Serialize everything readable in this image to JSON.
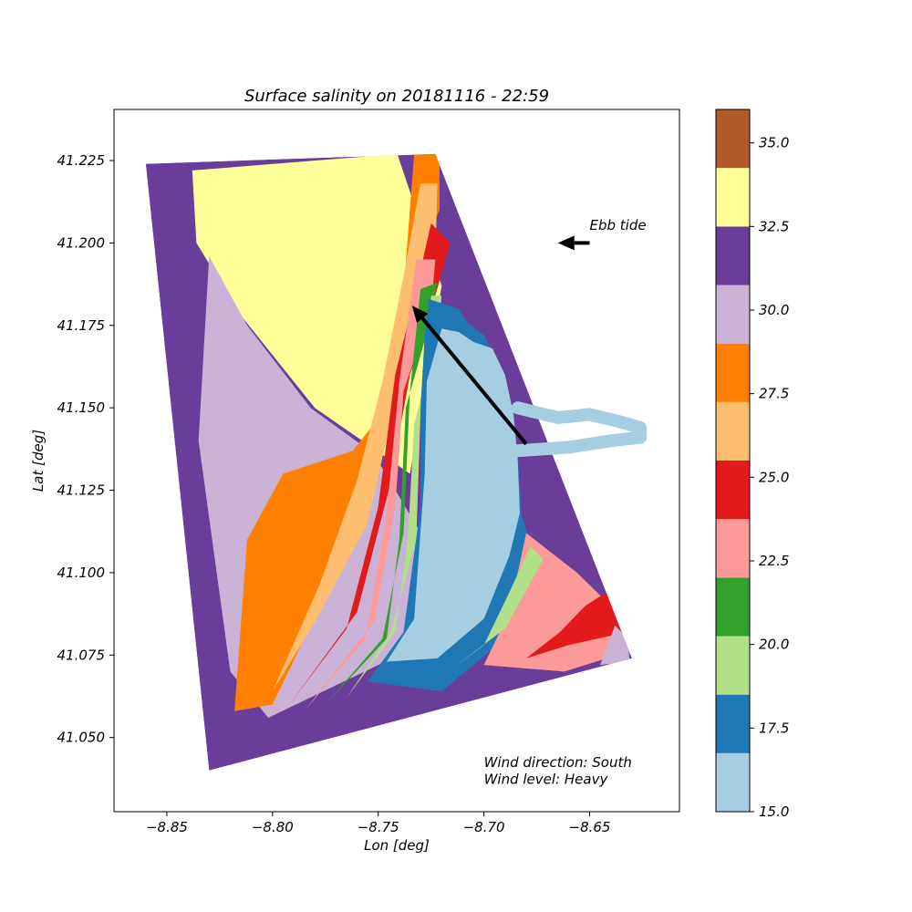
{
  "chart_data": {
    "type": "heatmap",
    "title": "Surface salinity on 20181116 - 22:59",
    "xlabel": "Lon [deg]",
    "ylabel": "Lat [deg]",
    "xlim": [
      -8.875,
      -8.6075
    ],
    "ylim": [
      41.0275,
      41.2405
    ],
    "xticks": [
      -8.85,
      -8.8,
      -8.75,
      -8.7,
      -8.65
    ],
    "xtick_labels": [
      "−8.85",
      "−8.80",
      "−8.75",
      "−8.70",
      "−8.65"
    ],
    "yticks": [
      41.05,
      41.075,
      41.1,
      41.125,
      41.15,
      41.175,
      41.2,
      41.225
    ],
    "ytick_labels": [
      "41.050",
      "41.075",
      "41.100",
      "41.125",
      "41.150",
      "41.175",
      "41.200",
      "41.225"
    ],
    "grid": false,
    "colorbar": {
      "min": 15.0,
      "max": 36.0,
      "ticks": [
        15.0,
        17.5,
        20.0,
        22.5,
        25.0,
        27.5,
        30.0,
        32.5,
        35.0
      ],
      "tick_labels": [
        "15.0",
        "17.5",
        "20.0",
        "22.5",
        "25.0",
        "27.5",
        "30.0",
        "32.5",
        "35.0"
      ],
      "levels": [
        {
          "from": 15.0,
          "to": 16.75,
          "color": "#a6cee3"
        },
        {
          "from": 16.75,
          "to": 18.5,
          "color": "#1f78b4"
        },
        {
          "from": 18.5,
          "to": 20.25,
          "color": "#b2df8a"
        },
        {
          "from": 20.25,
          "to": 22.0,
          "color": "#33a02c"
        },
        {
          "from": 22.0,
          "to": 23.75,
          "color": "#fb9a99"
        },
        {
          "from": 23.75,
          "to": 25.5,
          "color": "#e31a1c"
        },
        {
          "from": 25.5,
          "to": 27.25,
          "color": "#fdbf6f"
        },
        {
          "from": 27.25,
          "to": 29.0,
          "color": "#ff7f00"
        },
        {
          "from": 29.0,
          "to": 30.75,
          "color": "#cab2d6"
        },
        {
          "from": 30.75,
          "to": 32.5,
          "color": "#6a3d9a"
        },
        {
          "from": 32.5,
          "to": 34.25,
          "color": "#ffff99"
        },
        {
          "from": 34.25,
          "to": 36.0,
          "color": "#b15928"
        }
      ]
    },
    "field": {
      "domain_corners": [
        [
          -8.86,
          41.224
        ],
        [
          -8.723,
          41.227
        ],
        [
          -8.63,
          41.074
        ],
        [
          -8.83,
          41.04
        ]
      ],
      "river_path": [
        [
          -8.684,
          41.15
        ],
        [
          -8.665,
          41.147
        ],
        [
          -8.65,
          41.148
        ],
        [
          -8.637,
          41.146
        ],
        [
          -8.626,
          41.144
        ],
        [
          -8.626,
          41.141
        ],
        [
          -8.64,
          41.14
        ],
        [
          -8.66,
          41.138
        ],
        [
          -8.684,
          41.137
        ]
      ],
      "zones": [
        {
          "value": 33.0,
          "polygon": [
            [
              -8.838,
              41.222
            ],
            [
              -8.741,
              41.227
            ],
            [
              -8.72,
              41.187
            ],
            [
              -8.735,
              41.13
            ],
            [
              -8.78,
              41.15
            ],
            [
              -8.815,
              41.178
            ],
            [
              -8.836,
              41.2
            ]
          ]
        },
        {
          "value": 30.0,
          "polygon": [
            [
              -8.83,
              41.196
            ],
            [
              -8.812,
              41.175
            ],
            [
              -8.782,
              41.15
            ],
            [
              -8.752,
              41.136
            ],
            [
              -8.728,
              41.11
            ],
            [
              -8.724,
              41.08
            ],
            [
              -8.802,
              41.056
            ],
            [
              -8.82,
              41.07
            ],
            [
              -8.835,
              41.14
            ]
          ]
        },
        {
          "value": 28.0,
          "polygon": [
            [
              -8.733,
              41.227
            ],
            [
              -8.721,
              41.227
            ],
            [
              -8.721,
              41.21
            ],
            [
              -8.735,
              41.19
            ],
            [
              -8.745,
              41.16
            ],
            [
              -8.76,
              41.125
            ],
            [
              -8.77,
              41.1
            ],
            [
              -8.8,
              41.06
            ],
            [
              -8.818,
              41.058
            ],
            [
              -8.812,
              41.11
            ],
            [
              -8.795,
              41.13
            ],
            [
              -8.762,
              41.137
            ],
            [
              -8.746,
              41.15
            ],
            [
              -8.738,
              41.185
            ]
          ]
        },
        {
          "value": 33.0,
          "polygon": [
            [
              -8.79,
              41.207
            ],
            [
              -8.745,
              41.225
            ],
            [
              -8.74,
              41.2
            ],
            [
              -8.752,
              41.17
            ],
            [
              -8.762,
              41.148
            ],
            [
              -8.785,
              41.162
            ],
            [
              -8.793,
              41.182
            ]
          ]
        },
        {
          "value": 26.0,
          "polygon": [
            [
              -8.73,
              41.218
            ],
            [
              -8.722,
              41.218
            ],
            [
              -8.723,
              41.194
            ],
            [
              -8.733,
              41.18
            ],
            [
              -8.742,
              41.152
            ],
            [
              -8.755,
              41.115
            ],
            [
              -8.78,
              41.085
            ],
            [
              -8.8,
              41.064
            ],
            [
              -8.778,
              41.096
            ],
            [
              -8.76,
              41.128
            ],
            [
              -8.748,
              41.158
            ],
            [
              -8.738,
              41.19
            ]
          ]
        },
        {
          "value": 24.5,
          "polygon": [
            [
              -8.725,
              41.206
            ],
            [
              -8.716,
              41.2
            ],
            [
              -8.723,
              41.184
            ],
            [
              -8.735,
              41.16
            ],
            [
              -8.745,
              41.125
            ],
            [
              -8.76,
              41.088
            ],
            [
              -8.792,
              41.06
            ],
            [
              -8.765,
              41.083
            ],
            [
              -8.75,
              41.12
            ],
            [
              -8.742,
              41.16
            ],
            [
              -8.732,
              41.186
            ]
          ]
        },
        {
          "value": 23.0,
          "polygon": [
            [
              -8.732,
              41.195
            ],
            [
              -8.723,
              41.195
            ],
            [
              -8.725,
              41.18
            ],
            [
              -8.738,
              41.155
            ],
            [
              -8.742,
              41.12
            ],
            [
              -8.752,
              41.085
            ],
            [
              -8.785,
              41.058
            ],
            [
              -8.756,
              41.08
            ],
            [
              -8.746,
              41.118
            ],
            [
              -8.74,
              41.158
            ]
          ]
        },
        {
          "value": 21.0,
          "polygon": [
            [
              -8.73,
              41.186
            ],
            [
              -8.722,
              41.188
            ],
            [
              -8.726,
              41.175
            ],
            [
              -8.737,
              41.15
            ],
            [
              -8.74,
              41.11
            ],
            [
              -8.746,
              41.08
            ],
            [
              -8.775,
              41.06
            ],
            [
              -8.748,
              41.08
            ],
            [
              -8.738,
              41.112
            ],
            [
              -8.735,
              41.155
            ]
          ]
        },
        {
          "value": 19.0,
          "polygon": [
            [
              -8.725,
              41.184
            ],
            [
              -8.72,
              41.184
            ],
            [
              -8.722,
              41.172
            ],
            [
              -8.733,
              41.145
            ],
            [
              -8.736,
              41.11
            ],
            [
              -8.742,
              41.082
            ],
            [
              -8.765,
              41.062
            ],
            [
              -8.744,
              41.082
            ],
            [
              -8.732,
              41.11
            ],
            [
              -8.73,
              41.148
            ]
          ]
        },
        {
          "value": 17.0,
          "polygon": [
            [
              -8.726,
              41.183
            ],
            [
              -8.712,
              41.18
            ],
            [
              -8.708,
              41.176
            ],
            [
              -8.7,
              41.172
            ],
            [
              -8.69,
              41.16
            ],
            [
              -8.688,
              41.148
            ],
            [
              -8.684,
              41.136
            ],
            [
              -8.682,
              41.117
            ],
            [
              -8.676,
              41.105
            ],
            [
              -8.69,
              41.08
            ],
            [
              -8.72,
              41.064
            ],
            [
              -8.755,
              41.067
            ],
            [
              -8.738,
              41.082
            ],
            [
              -8.73,
              41.12
            ],
            [
              -8.73,
              41.15
            ],
            [
              -8.728,
              41.172
            ]
          ]
        },
        {
          "value": 16.0,
          "polygon": [
            [
              -8.72,
              41.174
            ],
            [
              -8.712,
              41.173
            ],
            [
              -8.705,
              41.17
            ],
            [
              -8.696,
              41.168
            ],
            [
              -8.69,
              41.16
            ],
            [
              -8.686,
              41.148
            ],
            [
              -8.684,
              41.134
            ],
            [
              -8.683,
              41.118
            ],
            [
              -8.688,
              41.105
            ],
            [
              -8.7,
              41.086
            ],
            [
              -8.722,
              41.074
            ],
            [
              -8.746,
              41.073
            ],
            [
              -8.733,
              41.086
            ],
            [
              -8.728,
              41.13
            ],
            [
              -8.727,
              41.158
            ]
          ]
        },
        {
          "value": 22.5,
          "polygon": [
            [
              -8.68,
              41.112
            ],
            [
              -8.656,
              41.1
            ],
            [
              -8.64,
              41.09
            ],
            [
              -8.632,
              41.076
            ],
            [
              -8.662,
              41.07
            ],
            [
              -8.7,
              41.072
            ],
            [
              -8.688,
              41.088
            ]
          ]
        },
        {
          "value": 20.0,
          "polygon": [
            [
              -8.678,
              41.108
            ],
            [
              -8.672,
              41.104
            ],
            [
              -8.69,
              41.083
            ],
            [
              -8.715,
              41.071
            ],
            [
              -8.7,
              41.078
            ],
            [
              -8.688,
              41.094
            ]
          ]
        },
        {
          "value": 24.5,
          "polygon": [
            [
              -8.642,
              41.094
            ],
            [
              -8.632,
              41.09
            ],
            [
              -8.632,
              41.082
            ],
            [
              -8.66,
              41.078
            ],
            [
              -8.68,
              41.074
            ],
            [
              -8.664,
              41.082
            ],
            [
              -8.652,
              41.09
            ]
          ]
        },
        {
          "value": 29.5,
          "polygon": [
            [
              -8.638,
              41.084
            ],
            [
              -8.632,
              41.08
            ],
            [
              -8.631,
              41.073
            ],
            [
              -8.645,
              41.072
            ]
          ]
        }
      ]
    },
    "annotations": [
      {
        "text": "Ebb tide",
        "x": -8.65,
        "y": 41.204
      },
      {
        "text": "Wind direction: South",
        "x": -8.7,
        "y": 41.041
      },
      {
        "text": "Wind level: Heavy",
        "x": -8.7,
        "y": 41.036
      }
    ],
    "arrows": [
      {
        "name": "current-arrow",
        "from": [
          -8.68,
          41.139
        ],
        "to": [
          -8.734,
          41.181
        ]
      },
      {
        "name": "ebb-tide-arrow",
        "from": [
          -8.65,
          41.2
        ],
        "to": [
          -8.665,
          41.2
        ]
      }
    ]
  }
}
